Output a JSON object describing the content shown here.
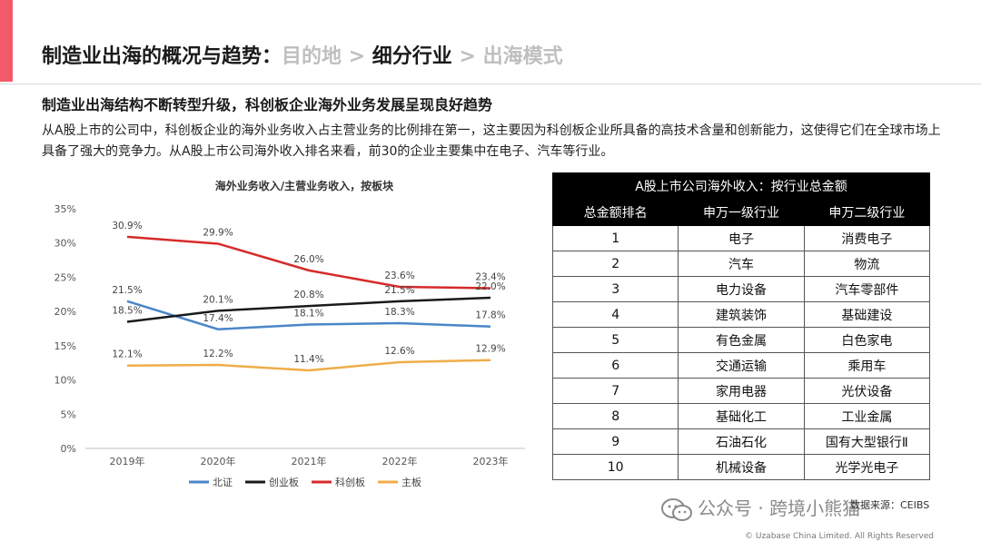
{
  "header": {
    "title_main": "制造业出海的概况与趋势：",
    "title_tab1": "目的地",
    "title_sep1": " > ",
    "title_tab2": "细分行业",
    "title_sep2": " > ",
    "title_tab3": "出海模式"
  },
  "subtitle": "制造业出海结构不断转型升级，科创板企业海外业务发展呈现良好趋势",
  "body_text": "从A股上市的公司中，科创板企业的海外业务收入占主营业务的比例排在第一，这主要因为科创板企业所具备的高技术含量和创新能力，这使得它们在全球市场上具备了强大的竞争力。从A股上市公司海外收入排名来看，前30的企业主要集中在电子、汽车等行业。",
  "chart_data": {
    "type": "line",
    "title": "海外业务收入/主营业务收入，按板块",
    "x": [
      "2019年",
      "2020年",
      "2021年",
      "2022年",
      "2023年"
    ],
    "ylim": [
      0,
      35
    ],
    "yticks": [
      "0%",
      "5%",
      "10%",
      "15%",
      "20%",
      "25%",
      "30%",
      "35%"
    ],
    "grid": false,
    "legend": "bottom",
    "series": [
      {
        "name": "北证",
        "color": "#4a86c8",
        "values": [
          21.5,
          17.4,
          18.1,
          18.3,
          17.8
        ],
        "labels": [
          "21.5%",
          "17.4%",
          "18.1%",
          "18.3%",
          "17.8%"
        ]
      },
      {
        "name": "创业板",
        "color": "#1a1a1a",
        "values": [
          18.5,
          20.1,
          20.8,
          21.5,
          22.0
        ],
        "labels": [
          "18.5%",
          "20.1%",
          "20.8%",
          "21.5%",
          "22.0%"
        ]
      },
      {
        "name": "科创板",
        "color": "#d62b2b",
        "values": [
          30.9,
          29.9,
          26.0,
          23.6,
          23.4
        ],
        "labels": [
          "30.9%",
          "29.9%",
          "26.0%",
          "23.6%",
          "23.4%"
        ]
      },
      {
        "name": "主板",
        "color": "#f0ac48",
        "values": [
          12.1,
          12.2,
          11.4,
          12.6,
          12.9
        ],
        "labels": [
          "12.1%",
          "12.2%",
          "11.4%",
          "12.6%",
          "12.9%"
        ]
      }
    ]
  },
  "table": {
    "title": "A股上市公司海外收入：按行业总金额",
    "headers": [
      "总金额排名",
      "申万一级行业",
      "申万二级行业"
    ],
    "rows": [
      [
        "1",
        "电子",
        "消费电子"
      ],
      [
        "2",
        "汽车",
        "物流"
      ],
      [
        "3",
        "电力设备",
        "汽车零部件"
      ],
      [
        "4",
        "建筑装饰",
        "基础建设"
      ],
      [
        "5",
        "有色金属",
        "白色家电"
      ],
      [
        "6",
        "交通运输",
        "乘用车"
      ],
      [
        "7",
        "家用电器",
        "光伏设备"
      ],
      [
        "8",
        "基础化工",
        "工业金属"
      ],
      [
        "9",
        "石油石化",
        "国有大型银行Ⅱ"
      ],
      [
        "10",
        "机械设备",
        "光学光电子"
      ]
    ]
  },
  "watermark": "公众号 · 跨境小熊猫",
  "source": "数据来源：CEIBS",
  "copyright": "© Uzabase China Limited. All Rights Reserved",
  "colors": {
    "accent": "#f25a6a",
    "table_header": "#000000"
  }
}
